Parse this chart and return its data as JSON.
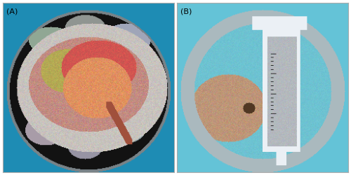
{
  "figsize": [
    5.0,
    2.5
  ],
  "dpi": 100,
  "bg_color": "#ffffff",
  "label_A": "(A)",
  "label_B": "(B)",
  "label_fontsize": 8,
  "label_color": "#000000",
  "border_color": "#aaaaaa",
  "border_linewidth": 0.8,
  "panel_A": {
    "bg_teal": [
      30,
      140,
      180
    ],
    "bg_dark": [
      18,
      18,
      18
    ],
    "bowl_rim": [
      120,
      130,
      135
    ],
    "ice_gray": [
      160,
      162,
      165
    ],
    "tissue_white": [
      200,
      195,
      190
    ],
    "kidney_pink": [
      195,
      140,
      130
    ],
    "kidney_purple": [
      160,
      110,
      140
    ],
    "tissue_yellow": [
      180,
      170,
      80
    ],
    "tissue_red": [
      210,
      80,
      60
    ],
    "tissue_orange": [
      220,
      140,
      90
    ],
    "tube_brown": [
      160,
      80,
      60
    ]
  },
  "panel_B": {
    "bg_teal": [
      100,
      195,
      215
    ],
    "bowl_steel": [
      170,
      185,
      190
    ],
    "bowl_inner_teal": [
      110,
      195,
      210
    ],
    "syringe_white": [
      235,
      240,
      245
    ],
    "syringe_gray": [
      180,
      185,
      190
    ],
    "calculi_brown": [
      80,
      55,
      35
    ],
    "hand_skin": [
      190,
      150,
      120
    ]
  }
}
